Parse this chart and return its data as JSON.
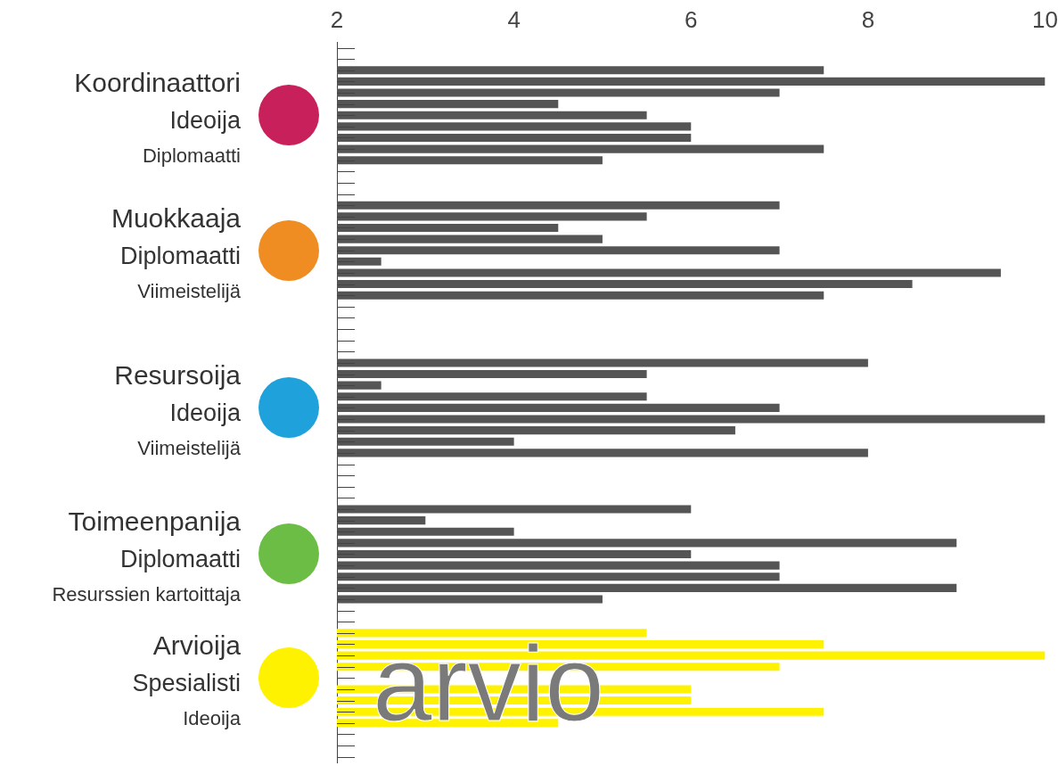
{
  "chart_data": {
    "type": "bar",
    "orientation": "horizontal",
    "tick_labels": "x",
    "categories": [
      null,
      null,
      null,
      null,
      null,
      null,
      null,
      null,
      null,
      null,
      null,
      null,
      null,
      null,
      null,
      null,
      null,
      null,
      null,
      null,
      null,
      null,
      null,
      null,
      null,
      null,
      null,
      null,
      null,
      null,
      null,
      null,
      null,
      null,
      null,
      null,
      null,
      null,
      null,
      null,
      null,
      null,
      null,
      null,
      null,
      null,
      null,
      null,
      null,
      null,
      null,
      null,
      null,
      null,
      null,
      null,
      null,
      null,
      null,
      null,
      null,
      null,
      null,
      null
    ],
    "values": [
      null,
      null,
      7.5,
      10,
      7,
      4.5,
      5.5,
      6,
      6,
      7.5,
      5,
      null,
      null,
      null,
      7,
      5.5,
      4.5,
      5,
      7,
      2.5,
      9.5,
      8.5,
      7.5,
      null,
      null,
      null,
      null,
      null,
      8,
      5.5,
      2.5,
      5.5,
      7,
      10,
      6.5,
      4,
      8,
      null,
      null,
      null,
      null,
      6,
      3,
      4,
      9,
      6,
      7,
      7,
      9,
      5,
      null,
      null,
      5.5,
      7.5,
      10,
      7,
      null,
      6,
      6,
      7.5,
      4.5,
      null,
      null,
      null
    ],
    "colors": [
      null,
      null,
      "#555555",
      "#555555",
      "#555555",
      "#555555",
      "#555555",
      "#555555",
      "#555555",
      "#555555",
      "#555555",
      null,
      null,
      null,
      "#555555",
      "#555555",
      "#555555",
      "#555555",
      "#555555",
      "#555555",
      "#555555",
      "#555555",
      "#555555",
      null,
      null,
      null,
      null,
      null,
      "#555555",
      "#555555",
      "#555555",
      "#555555",
      "#555555",
      "#555555",
      "#555555",
      "#555555",
      "#555555",
      null,
      null,
      null,
      null,
      "#555555",
      "#555555",
      "#555555",
      "#555555",
      "#555555",
      "#555555",
      "#555555",
      "#555555",
      "#555555",
      null,
      null,
      "#fff200",
      "#fff200",
      "#fff200",
      "#fff200",
      "#fff200",
      "#fff200",
      "#fff200",
      "#fff200",
      "#fff200",
      null,
      null,
      null
    ],
    "xlim": [
      2,
      10
    ],
    "xticks": [
      2,
      4,
      6,
      8,
      10
    ],
    "annotations": [
      "Koordinaattori",
      "Ideoija",
      "Diplomaatti",
      "Muokkaaja",
      "Diplomaatti",
      "Viimeistelijä",
      "Resursoija",
      "Ideoija",
      "Viimeistelijä",
      "Toimeenpanija",
      "Diplomaatti",
      "Resurssien kartoittaja",
      "Arvioija",
      "Spesialisti",
      "Ideoija",
      "arvio"
    ]
  }
}
